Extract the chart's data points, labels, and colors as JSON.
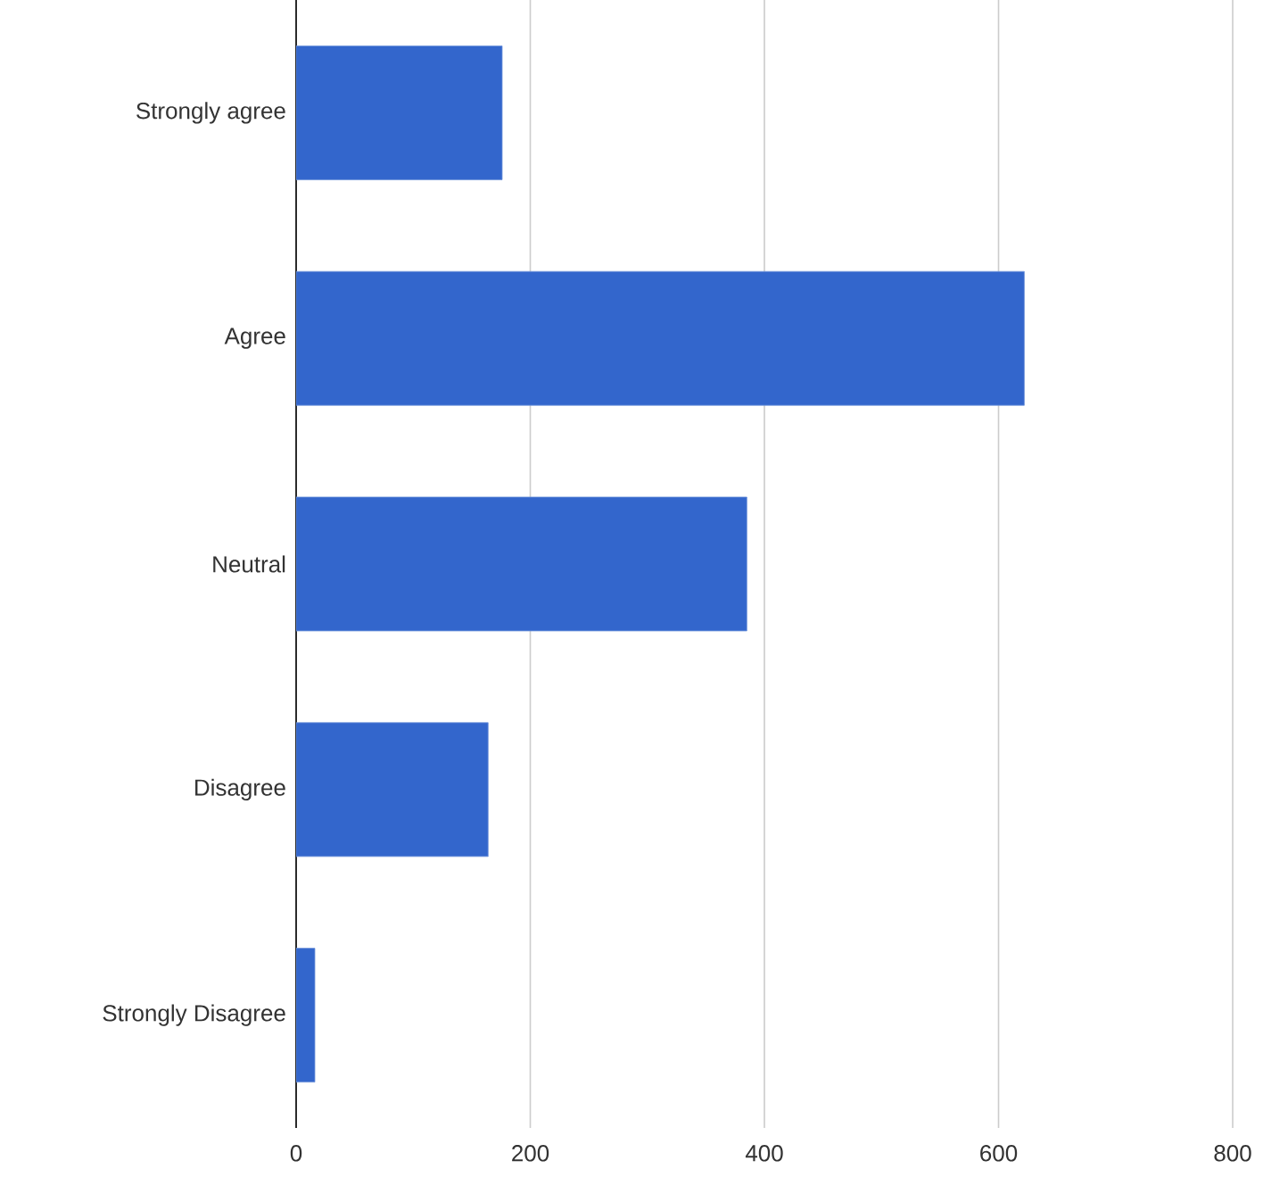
{
  "chart_data": {
    "type": "bar",
    "orientation": "horizontal",
    "categories": [
      "Strongly agree",
      "Agree",
      "Neutral",
      "Disagree",
      "Strongly Disagree"
    ],
    "values": [
      176,
      622,
      385,
      164,
      16
    ],
    "color": "#3366cc",
    "xlim": [
      0,
      800
    ],
    "xticks": [
      0,
      200,
      400,
      600,
      800
    ],
    "grid": "x"
  }
}
